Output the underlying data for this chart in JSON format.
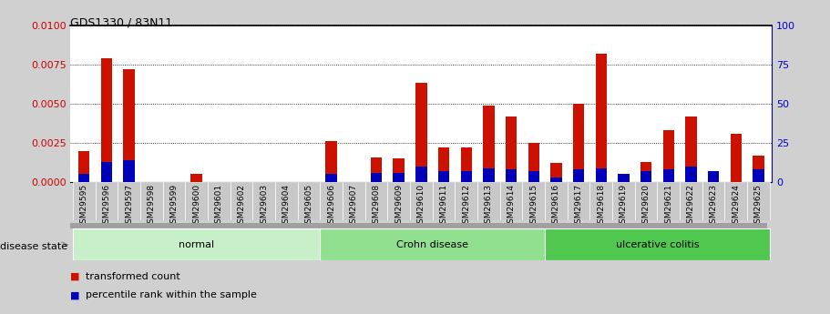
{
  "title": "GDS1330 / 83N11",
  "samples": [
    "GSM29595",
    "GSM29596",
    "GSM29597",
    "GSM29598",
    "GSM29599",
    "GSM29600",
    "GSM29601",
    "GSM29602",
    "GSM29603",
    "GSM29604",
    "GSM29605",
    "GSM29606",
    "GSM29607",
    "GSM29608",
    "GSM29609",
    "GSM29610",
    "GSM29611",
    "GSM29612",
    "GSM29613",
    "GSM29614",
    "GSM29615",
    "GSM29616",
    "GSM29617",
    "GSM29618",
    "GSM29619",
    "GSM29620",
    "GSM29621",
    "GSM29622",
    "GSM29623",
    "GSM29624",
    "GSM29625"
  ],
  "transformed_count": [
    0.002,
    0.0079,
    0.0072,
    0.0,
    0.0,
    0.00055,
    0.0,
    0.0,
    0.0,
    0.0,
    0.0,
    0.0026,
    0.0,
    0.0016,
    0.0015,
    0.0063,
    0.0022,
    0.0022,
    0.0049,
    0.0042,
    0.0025,
    0.0012,
    0.005,
    0.0082,
    0.0,
    0.0013,
    0.0033,
    0.0042,
    0.0,
    0.0031,
    0.0017
  ],
  "percentile_rank_pct": [
    5,
    13,
    14,
    0,
    0,
    0,
    0,
    0,
    0,
    0,
    0,
    5,
    0,
    6,
    6,
    10,
    7,
    7,
    9,
    8,
    7,
    3,
    8,
    9,
    5,
    7,
    8,
    10,
    7,
    0,
    8
  ],
  "groups": [
    {
      "label": "normal",
      "start": 0,
      "end": 10,
      "color": "#c8f0c8"
    },
    {
      "label": "Crohn disease",
      "start": 11,
      "end": 20,
      "color": "#90e090"
    },
    {
      "label": "ulcerative colitis",
      "start": 21,
      "end": 30,
      "color": "#50c850"
    }
  ],
  "ylim_left": [
    0,
    0.01
  ],
  "ylim_right": [
    0,
    100
  ],
  "yticks_left": [
    0,
    0.0025,
    0.005,
    0.0075,
    0.01
  ],
  "yticks_right": [
    0,
    25,
    50,
    75,
    100
  ],
  "left_axis_color": "#cc0000",
  "right_axis_color": "#0000cc",
  "bar_color_red": "#cc1100",
  "bar_color_blue": "#0000bb",
  "plot_bg": "#ffffff",
  "fig_bg": "#d0d0d0",
  "xticklabel_bg": "#c0c0c0",
  "bar_width": 0.5
}
